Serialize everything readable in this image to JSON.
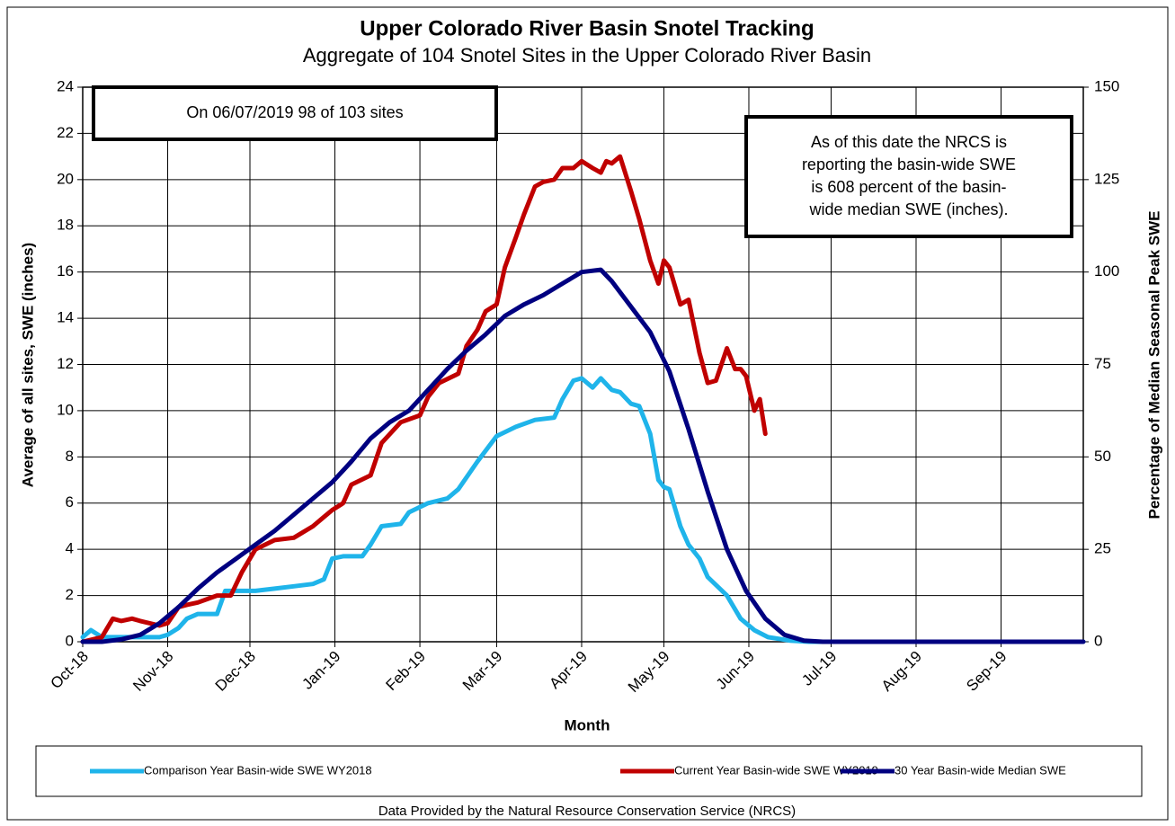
{
  "chart_data": {
    "type": "line",
    "title": "Upper Colorado River Basin Snotel Tracking",
    "subtitle": "Aggregate of 104 Snotel Sites in the Upper Colorado River Basin",
    "xlabel": "Month",
    "ylabel": "Average of all sites, SWE (inches)",
    "y2label": "Percentage of Median Seasonal Peak SWE",
    "annotations": [
      [
        "On 06/07/2019 98 of 103 sites"
      ],
      [
        "As of this date the NRCS is",
        "reporting the basin-wide SWE",
        "is 608 percent of the basin-",
        "wide median SWE (inches)."
      ]
    ],
    "source": "Data Provided by the Natural Resource Conservation Service (NRCS)",
    "xlim": [
      0,
      365
    ],
    "xticks": [
      {
        "value": 0,
        "label": "Oct-18"
      },
      {
        "value": 31,
        "label": "Nov-18"
      },
      {
        "value": 61,
        "label": "Dec-18"
      },
      {
        "value": 92,
        "label": "Jan-19"
      },
      {
        "value": 123,
        "label": "Feb-19"
      },
      {
        "value": 151,
        "label": "Mar-19"
      },
      {
        "value": 182,
        "label": "Apr-19"
      },
      {
        "value": 212,
        "label": "May-19"
      },
      {
        "value": 243,
        "label": "Jun-19"
      },
      {
        "value": 273,
        "label": "Jul-19"
      },
      {
        "value": 304,
        "label": "Aug-19"
      },
      {
        "value": 335,
        "label": "Sep-19"
      }
    ],
    "ylim": [
      0,
      24
    ],
    "yticks": [
      0,
      2,
      4,
      6,
      8,
      10,
      12,
      14,
      16,
      18,
      20,
      22,
      24
    ],
    "y2lim": [
      0,
      150
    ],
    "y2ticks": [
      0,
      25,
      50,
      75,
      100,
      125,
      150
    ],
    "grid": true,
    "legend": "bottom",
    "series": [
      {
        "name": "Comparison Year Basin-wide SWE WY2018",
        "color": "#1fb4ea",
        "x": [
          0,
          3,
          7,
          14,
          21,
          28,
          31,
          35,
          38,
          42,
          49,
          52,
          56,
          63,
          70,
          77,
          84,
          88,
          91,
          95,
          102,
          105,
          109,
          116,
          119,
          126,
          133,
          137,
          144,
          151,
          158,
          165,
          172,
          175,
          179,
          182,
          186,
          189,
          193,
          196,
          200,
          203,
          207,
          210,
          212,
          214,
          218,
          221,
          225,
          228,
          235,
          240,
          245,
          250,
          258,
          265,
          365
        ],
        "values": [
          0.2,
          0.5,
          0.2,
          0.2,
          0.2,
          0.2,
          0.3,
          0.6,
          1.0,
          1.2,
          1.2,
          2.2,
          2.2,
          2.2,
          2.3,
          2.4,
          2.5,
          2.7,
          3.6,
          3.7,
          3.7,
          4.2,
          5.0,
          5.1,
          5.6,
          6.0,
          6.2,
          6.6,
          7.8,
          8.9,
          9.3,
          9.6,
          9.7,
          10.5,
          11.3,
          11.4,
          11.0,
          11.4,
          10.9,
          10.8,
          10.3,
          10.2,
          9.0,
          7.0,
          6.7,
          6.6,
          5.0,
          4.2,
          3.6,
          2.8,
          2.0,
          1.0,
          0.5,
          0.2,
          0.05,
          0,
          0
        ]
      },
      {
        "name": "Current Year Basin-wide SWE WY2019",
        "color": "#c00000",
        "x": [
          0,
          7,
          11,
          14,
          18,
          21,
          28,
          31,
          35,
          38,
          42,
          49,
          54,
          58,
          63,
          70,
          77,
          84,
          88,
          91,
          95,
          98,
          105,
          109,
          116,
          123,
          126,
          130,
          137,
          140,
          144,
          147,
          151,
          154,
          158,
          161,
          165,
          168,
          172,
          175,
          179,
          182,
          186,
          189,
          191,
          193,
          196,
          200,
          203,
          207,
          210,
          212,
          214,
          218,
          221,
          225,
          228,
          231,
          235,
          238,
          240,
          242,
          245,
          247,
          249
        ],
        "values": [
          0,
          0.2,
          1.0,
          0.9,
          1.0,
          0.9,
          0.7,
          0.8,
          1.5,
          1.6,
          1.7,
          2.0,
          2.0,
          3.0,
          4.0,
          4.4,
          4.5,
          5.0,
          5.4,
          5.7,
          6.0,
          6.8,
          7.2,
          8.6,
          9.5,
          9.8,
          10.6,
          11.2,
          11.6,
          12.8,
          13.5,
          14.3,
          14.6,
          16.2,
          17.5,
          18.5,
          19.7,
          19.9,
          20.0,
          20.5,
          20.5,
          20.8,
          20.5,
          20.3,
          20.8,
          20.7,
          21.0,
          19.5,
          18.3,
          16.5,
          15.5,
          16.5,
          16.2,
          14.6,
          14.8,
          12.5,
          11.2,
          11.3,
          12.7,
          11.8,
          11.8,
          11.5,
          10.0,
          10.5,
          9.0
        ]
      },
      {
        "name": "30 Year Basin-wide Median SWE",
        "color": "#000080",
        "x": [
          0,
          7,
          14,
          21,
          28,
          35,
          42,
          49,
          56,
          63,
          70,
          77,
          84,
          91,
          98,
          105,
          112,
          119,
          126,
          133,
          140,
          147,
          154,
          161,
          168,
          175,
          182,
          189,
          193,
          200,
          207,
          214,
          221,
          228,
          235,
          242,
          249,
          256,
          263,
          270,
          365
        ],
        "values": [
          0,
          0,
          0.1,
          0.3,
          0.8,
          1.5,
          2.3,
          3.0,
          3.6,
          4.2,
          4.8,
          5.5,
          6.2,
          6.9,
          7.8,
          8.8,
          9.5,
          10.0,
          10.9,
          11.8,
          12.6,
          13.3,
          14.1,
          14.6,
          15.0,
          15.5,
          16.0,
          16.1,
          15.6,
          14.5,
          13.4,
          11.7,
          9.2,
          6.5,
          4.0,
          2.2,
          1.0,
          0.3,
          0.05,
          0,
          0
        ]
      }
    ]
  }
}
